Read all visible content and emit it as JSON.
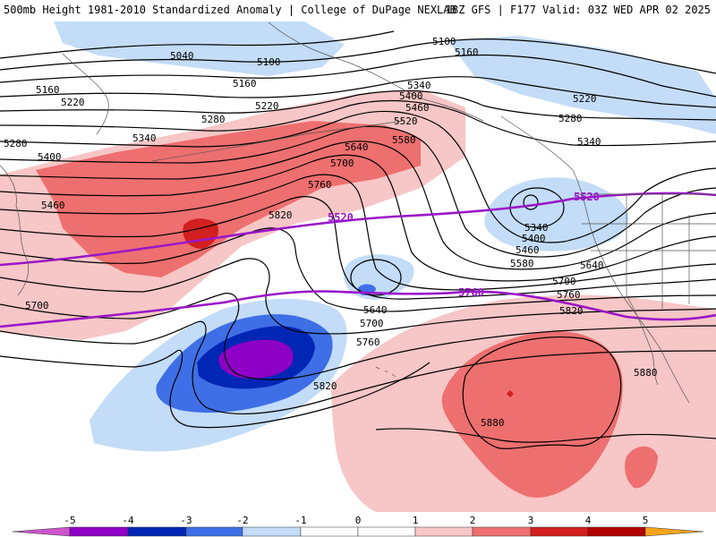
{
  "header": {
    "left_title": "500mb Height 1981-2010 Standardized Anomaly | College of DuPage NEXLAB",
    "right_title": "18Z GFS | F177 Valid: 03Z WED APR 02 2025"
  },
  "colors": {
    "m5": "#cc55cc",
    "m4": "#8e00c6",
    "m3": "#0026b5",
    "m2": "#3f6fe6",
    "m1": "#c3dcf7",
    "p1": "#f7c6c6",
    "p2": "#ee6f6f",
    "p3": "#d21f1f",
    "p4": "#b30000",
    "p5": "#f5a31c",
    "contour": "#000000",
    "highlight": "#9a16c8"
  },
  "colorbar": {
    "ticks": [
      "-5",
      "-4",
      "-3",
      "-2",
      "-1",
      "0",
      "1",
      "2",
      "3",
      "4",
      "5"
    ]
  },
  "height_labels": {
    "l5040": "5040",
    "l5100a": "5100",
    "l5100b": "5100",
    "l5100c": "5100",
    "l5160a": "5160",
    "l5160b": "5160",
    "l5160c": "5160",
    "l5220a": "5220",
    "l5220b": "5220",
    "l5220c": "5220",
    "l5280a": "5280",
    "l5280b": "5280",
    "l5280c": "5280",
    "l5340a": "5340",
    "l5340b": "5340",
    "l5340c": "5340",
    "l5340d": "5340",
    "l5400a": "5400",
    "l5400b": "5400",
    "l5400c": "5400",
    "l5460a": "5460",
    "l5460b": "5460",
    "l5460c": "5460",
    "l5520a": "5520",
    "l5520b": "5520",
    "l5580a": "5580",
    "l5580b": "5580",
    "l5640a": "5640",
    "l5640b": "5640",
    "l5640c": "5640",
    "l5700a": "5700",
    "l5700b": "5700",
    "l5700c": "5700",
    "l5700d": "5700",
    "l5760a": "5760",
    "l5760b": "5760",
    "l5760c": "5760",
    "l5820a": "5820",
    "l5820b": "5820",
    "l5820c": "5820",
    "l5880a": "5880",
    "l5880b": "5880",
    "hl5520a": "5520",
    "hl5520b": "5520",
    "hl5760": "5760"
  }
}
